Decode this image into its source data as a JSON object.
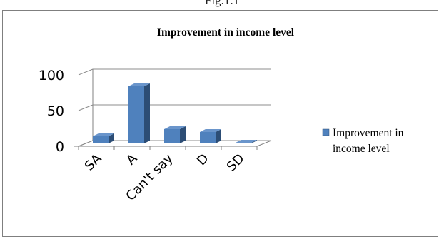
{
  "figure_label": "Fig.1.1",
  "colors": {
    "bar_front": "#4f81bd",
    "bar_side": "#2c4d75",
    "bar_top": "#6a95cb",
    "watermark_blue": "#d8f3f6",
    "watermark_peach": "#fde3d3"
  },
  "chart_data": {
    "type": "bar",
    "title": "Improvement in income level",
    "categories": [
      "SA",
      "A",
      "Can't say",
      "D",
      "SD"
    ],
    "series": [
      {
        "name": "Improvement in income level",
        "values": [
          10,
          80,
          20,
          16,
          1
        ]
      }
    ],
    "ylim": [
      0,
      100
    ],
    "yticks": [
      "0",
      "50",
      "100"
    ],
    "xlabel": "",
    "ylabel": "",
    "grid": true,
    "legend_position": "right",
    "style": "3d-column"
  }
}
